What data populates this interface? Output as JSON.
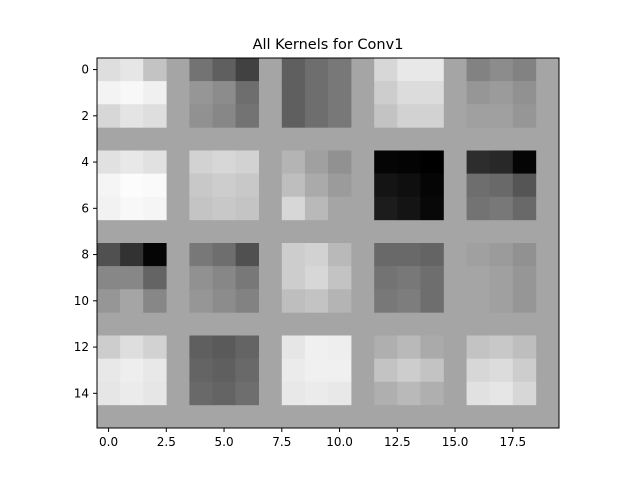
{
  "chart_data": {
    "type": "heatmap",
    "title": "All Kernels for Conv1",
    "colormap": "gray",
    "vmin": 0,
    "vmax": 255,
    "background_value": 165,
    "x_ticks": [
      0.0,
      2.5,
      5.0,
      7.5,
      10.0,
      12.5,
      15.0,
      17.5
    ],
    "x_tick_labels": [
      "0.0",
      "2.5",
      "5.0",
      "7.5",
      "10.0",
      "12.5",
      "15.0",
      "17.5"
    ],
    "y_ticks": [
      0,
      2,
      4,
      6,
      8,
      10,
      12,
      14
    ],
    "y_tick_labels": [
      "0",
      "2",
      "4",
      "6",
      "8",
      "10",
      "12",
      "14"
    ],
    "xlim": [
      -0.5,
      19.5
    ],
    "ylim": [
      15.5,
      -0.5
    ],
    "grid": false,
    "kernels": [
      {
        "row": 0,
        "col": 0,
        "values": [
          [
            222,
            230,
            195
          ],
          [
            243,
            248,
            240
          ],
          [
            215,
            228,
            222
          ]
        ]
      },
      {
        "row": 0,
        "col": 1,
        "values": [
          [
            115,
            95,
            65
          ],
          [
            150,
            140,
            110
          ],
          [
            145,
            135,
            115
          ]
        ]
      },
      {
        "row": 0,
        "col": 2,
        "values": [
          [
            95,
            110,
            120
          ],
          [
            95,
            110,
            120
          ],
          [
            95,
            110,
            120
          ]
        ]
      },
      {
        "row": 0,
        "col": 3,
        "values": [
          [
            215,
            232,
            232
          ],
          [
            205,
            220,
            220
          ],
          [
            195,
            210,
            210
          ]
        ]
      },
      {
        "row": 0,
        "col": 4,
        "values": [
          [
            130,
            140,
            130
          ],
          [
            150,
            155,
            145
          ],
          [
            160,
            160,
            150
          ]
        ]
      },
      {
        "row": 1,
        "col": 0,
        "values": [
          [
            225,
            232,
            225
          ],
          [
            245,
            252,
            250
          ],
          [
            242,
            248,
            245
          ]
        ]
      },
      {
        "row": 1,
        "col": 1,
        "values": [
          [
            210,
            215,
            210
          ],
          [
            200,
            205,
            200
          ],
          [
            196,
            200,
            196
          ]
        ]
      },
      {
        "row": 1,
        "col": 2,
        "values": [
          [
            180,
            160,
            145
          ],
          [
            190,
            170,
            155
          ],
          [
            215,
            185,
            165
          ]
        ]
      },
      {
        "row": 1,
        "col": 3,
        "values": [
          [
            5,
            3,
            0
          ],
          [
            20,
            15,
            5
          ],
          [
            28,
            20,
            8
          ]
        ]
      },
      {
        "row": 1,
        "col": 4,
        "values": [
          [
            45,
            40,
            5
          ],
          [
            110,
            105,
            85
          ],
          [
            115,
            120,
            105
          ]
        ]
      },
      {
        "row": 2,
        "col": 0,
        "values": [
          [
            80,
            50,
            5
          ],
          [
            135,
            135,
            100
          ],
          [
            150,
            165,
            135
          ]
        ]
      },
      {
        "row": 2,
        "col": 1,
        "values": [
          [
            120,
            110,
            80
          ],
          [
            145,
            135,
            120
          ],
          [
            150,
            140,
            130
          ]
        ]
      },
      {
        "row": 2,
        "col": 2,
        "values": [
          [
            205,
            210,
            185
          ],
          [
            205,
            215,
            195
          ],
          [
            190,
            195,
            180
          ]
        ]
      },
      {
        "row": 2,
        "col": 3,
        "values": [
          [
            105,
            105,
            100
          ],
          [
            115,
            120,
            110
          ],
          [
            120,
            125,
            110
          ]
        ]
      },
      {
        "row": 2,
        "col": 4,
        "values": [
          [
            160,
            155,
            145
          ],
          [
            165,
            160,
            150
          ],
          [
            165,
            160,
            150
          ]
        ]
      },
      {
        "row": 3,
        "col": 0,
        "values": [
          [
            205,
            222,
            210
          ],
          [
            232,
            238,
            232
          ],
          [
            230,
            235,
            230
          ]
        ]
      },
      {
        "row": 3,
        "col": 1,
        "values": [
          [
            95,
            90,
            100
          ],
          [
            100,
            95,
            105
          ],
          [
            105,
            100,
            110
          ]
        ]
      },
      {
        "row": 3,
        "col": 2,
        "values": [
          [
            230,
            240,
            238
          ],
          [
            235,
            240,
            240
          ],
          [
            232,
            235,
            232
          ]
        ]
      },
      {
        "row": 3,
        "col": 3,
        "values": [
          [
            175,
            185,
            170
          ],
          [
            195,
            205,
            195
          ],
          [
            175,
            185,
            175
          ]
        ]
      },
      {
        "row": 3,
        "col": 4,
        "values": [
          [
            195,
            200,
            190
          ],
          [
            215,
            220,
            205
          ],
          [
            225,
            230,
            215
          ]
        ]
      }
    ]
  }
}
